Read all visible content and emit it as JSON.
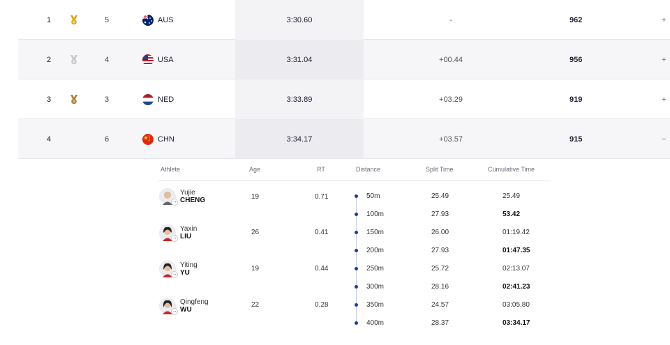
{
  "results": [
    {
      "rank": "1",
      "medal": "gold",
      "lane": "5",
      "country": "AUS",
      "time": "3:30.60",
      "diff": "-",
      "points": "962",
      "expand": "+"
    },
    {
      "rank": "2",
      "medal": "silver",
      "lane": "4",
      "country": "USA",
      "time": "3:31.04",
      "diff": "+00.44",
      "points": "956",
      "expand": "+"
    },
    {
      "rank": "3",
      "medal": "bronze",
      "lane": "3",
      "country": "NED",
      "time": "3:33.89",
      "diff": "+03.29",
      "points": "919",
      "expand": "+"
    },
    {
      "rank": "4",
      "medal": "",
      "lane": "6",
      "country": "CHN",
      "time": "3:34.17",
      "diff": "+03.57",
      "points": "915",
      "expand": "−"
    }
  ],
  "detail": {
    "headers": {
      "athlete": "Athlete",
      "age": "Age",
      "rt": "RT",
      "distance": "Distance",
      "split": "Split Time",
      "cumulative": "Cumulative Time"
    },
    "athletes": [
      {
        "first": "Yujie",
        "last": "CHENG",
        "age": "19",
        "rt": "0.71"
      },
      {
        "first": "Yaxin",
        "last": "LIU",
        "age": "26",
        "rt": "0.41"
      },
      {
        "first": "Yiting",
        "last": "YU",
        "age": "19",
        "rt": "0.44"
      },
      {
        "first": "Qingfeng",
        "last": "WU",
        "age": "22",
        "rt": "0.28"
      }
    ],
    "splits": [
      {
        "distance": "50m",
        "split": "25.49",
        "cumulative": "25.49"
      },
      {
        "distance": "100m",
        "split": "27.93",
        "cumulative": "53.42"
      },
      {
        "distance": "150m",
        "split": "26.00",
        "cumulative": "01:19.42"
      },
      {
        "distance": "200m",
        "split": "27.93",
        "cumulative": "01:47.35"
      },
      {
        "distance": "250m",
        "split": "25.72",
        "cumulative": "02:13.07"
      },
      {
        "distance": "300m",
        "split": "28.16",
        "cumulative": "02:41.23"
      },
      {
        "distance": "350m",
        "split": "24.57",
        "cumulative": "03:05.80"
      },
      {
        "distance": "400m",
        "split": "28.37",
        "cumulative": "03:34.17"
      }
    ],
    "badge_glyph": "→"
  },
  "colors": {
    "gold": "#d9a520",
    "silver": "#c4c6cc",
    "bronze": "#a8813b",
    "accent": "#1c3aa8"
  }
}
